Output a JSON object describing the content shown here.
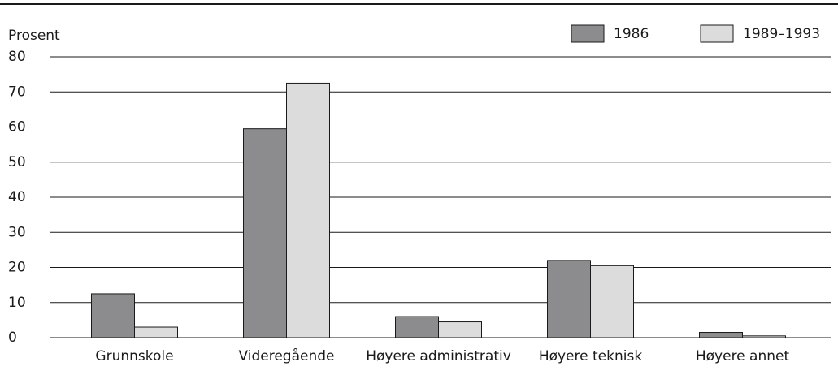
{
  "chart_data": {
    "type": "bar",
    "y_label": "Prosent",
    "categories": [
      "Grunnskole",
      "Videregående",
      "Høyere administrativ",
      "Høyere teknisk",
      "Høyere annet"
    ],
    "series": [
      {
        "name": "1986",
        "color": "#8c8c8e",
        "values": [
          12.5,
          59.5,
          6,
          22,
          1.5
        ]
      },
      {
        "name": "1989–1993",
        "color": "#dcdcdc",
        "values": [
          3,
          72.5,
          4.5,
          20.5,
          0.5
        ]
      }
    ],
    "ylim": [
      0,
      80
    ],
    "yticks": [
      0,
      10,
      20,
      30,
      40,
      50,
      60,
      70,
      80
    ],
    "grid": true,
    "legend": "top-right"
  }
}
